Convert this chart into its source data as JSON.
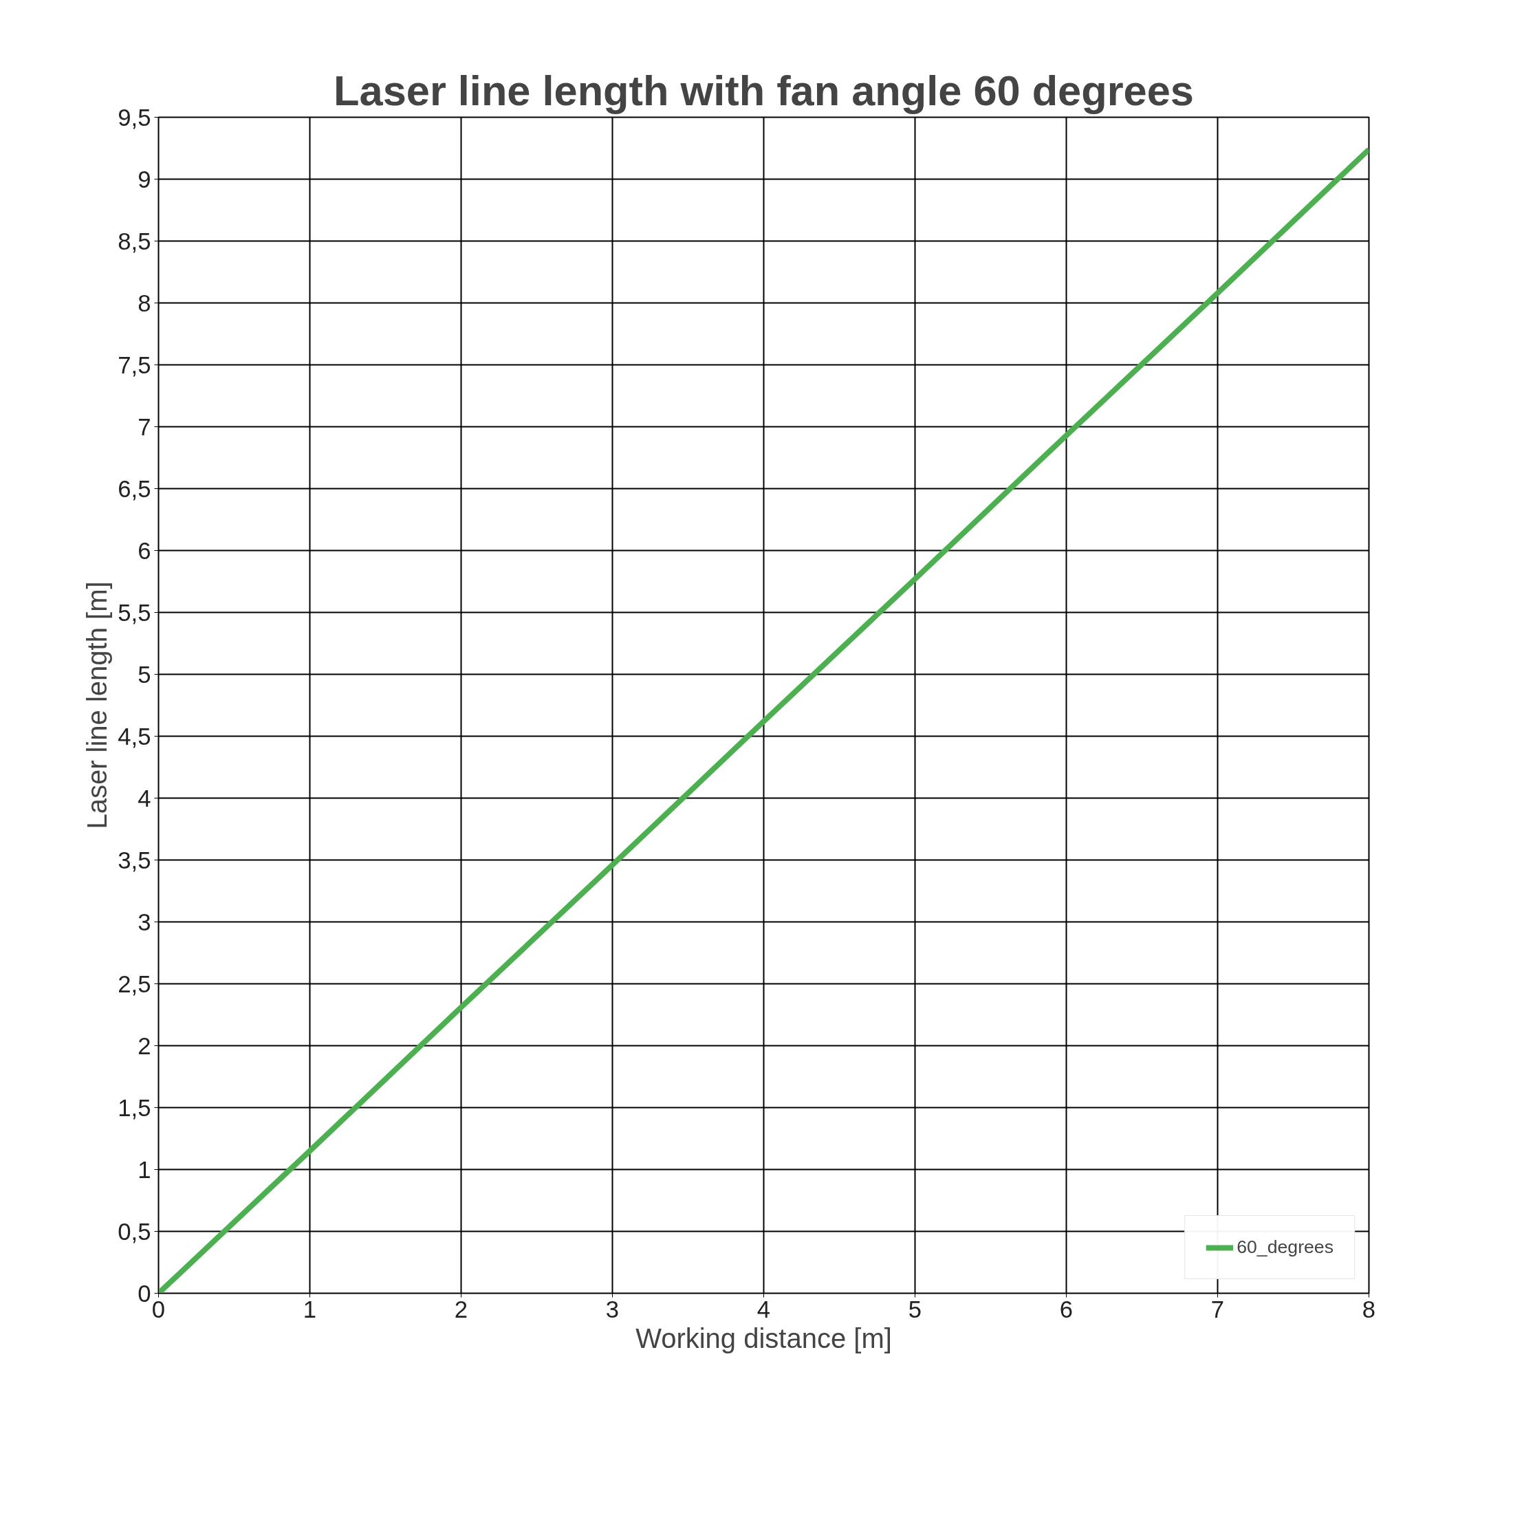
{
  "chart_data": {
    "type": "line",
    "title": "Laser line length with fan angle 60 degrees",
    "xlabel": "Working distance [m]",
    "ylabel": "Laser line length [m]",
    "x": [
      0,
      1,
      2,
      3,
      4,
      5,
      6,
      7,
      8
    ],
    "series": [
      {
        "name": "60_degrees",
        "color": "#4caf50",
        "values": [
          0,
          1.15,
          2.31,
          3.46,
          4.62,
          5.77,
          6.93,
          8.08,
          9.24
        ]
      }
    ],
    "xlim": [
      0,
      8
    ],
    "xticks": [
      0,
      1,
      2,
      3,
      4,
      5,
      6,
      7,
      8
    ],
    "ylim": [
      0,
      9.5
    ],
    "yticks": [
      0,
      {
        "value": 0.5,
        "label": "0,5"
      },
      1,
      {
        "value": 1.5,
        "label": "1,5"
      },
      2,
      {
        "value": 2.5,
        "label": "2,5"
      },
      3,
      {
        "value": 3.5,
        "label": "3,5"
      },
      4,
      {
        "value": 4.5,
        "label": "4,5"
      },
      5,
      {
        "value": 5.5,
        "label": "5,5"
      },
      6,
      {
        "value": 6.5,
        "label": "6,5"
      },
      7,
      {
        "value": 7.5,
        "label": "7,5"
      },
      8,
      {
        "value": 8.5,
        "label": "8,5"
      },
      9,
      {
        "value": 9.5,
        "label": "9,5"
      }
    ],
    "grid": true,
    "legend": "bottom right",
    "marker": "none",
    "line_style": "solid"
  }
}
